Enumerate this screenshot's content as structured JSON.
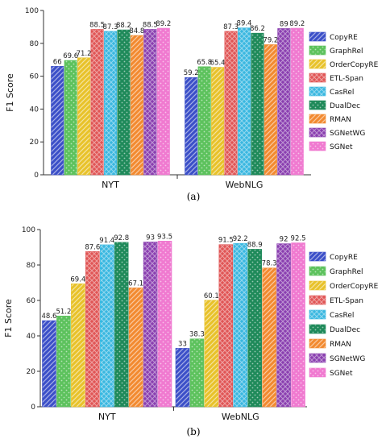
{
  "chart_data": [
    {
      "type": "bar",
      "panel_label": "(a)",
      "ylabel": "F1 Score",
      "ylim": [
        0,
        100
      ],
      "yticks": [
        0,
        20,
        40,
        60,
        80,
        100
      ],
      "categories": [
        "NYT",
        "WebNLG"
      ],
      "legend_position": "right",
      "series": [
        {
          "name": "CopyRE",
          "values": [
            66,
            59.2
          ],
          "color": "#3b4fc8",
          "pattern": "diagonal-hatch"
        },
        {
          "name": "GraphRel",
          "values": [
            69.6,
            65.8
          ],
          "color": "#5dc25d",
          "pattern": "dots"
        },
        {
          "name": "OrderCopyRE",
          "values": [
            71.2,
            65.4
          ],
          "color": "#e8c22a",
          "pattern": "diagonal-hatch"
        },
        {
          "name": "ETL-Span",
          "values": [
            88.5,
            87.3
          ],
          "color": "#e05555",
          "pattern": "cross-hatch"
        },
        {
          "name": "CasRel",
          "values": [
            87.3,
            89.4
          ],
          "color": "#39b7e0",
          "pattern": "cross-hatch"
        },
        {
          "name": "DualDec",
          "values": [
            88.2,
            86.2
          ],
          "color": "#1f8a5a",
          "pattern": "dots"
        },
        {
          "name": "RMAN",
          "values": [
            84.8,
            79.2
          ],
          "color": "#f28a30",
          "pattern": "diagonal-hatch"
        },
        {
          "name": "SGNetWG",
          "values": [
            88.5,
            89
          ],
          "color": "#8a3fb0",
          "pattern": "cross-hatch"
        },
        {
          "name": "SGNet",
          "values": [
            89.2,
            89.2
          ],
          "color": "#f07ad0",
          "pattern": "dots"
        }
      ]
    },
    {
      "type": "bar",
      "panel_label": "(b)",
      "ylabel": "F1 Score",
      "ylim": [
        0,
        100
      ],
      "yticks": [
        0,
        20,
        40,
        60,
        80,
        100
      ],
      "categories": [
        "NYT",
        "WebNLG"
      ],
      "legend_position": "right",
      "series": [
        {
          "name": "CopyRE",
          "values": [
            48.6,
            33
          ],
          "color": "#3b4fc8",
          "pattern": "diagonal-hatch"
        },
        {
          "name": "GraphRel",
          "values": [
            51.2,
            38.3
          ],
          "color": "#5dc25d",
          "pattern": "dots"
        },
        {
          "name": "OrderCopyRE",
          "values": [
            69.4,
            60.1
          ],
          "color": "#e8c22a",
          "pattern": "diagonal-hatch"
        },
        {
          "name": "ETL-Span",
          "values": [
            87.6,
            91.5
          ],
          "color": "#e05555",
          "pattern": "cross-hatch"
        },
        {
          "name": "CasRel",
          "values": [
            91.4,
            92.2
          ],
          "color": "#39b7e0",
          "pattern": "cross-hatch"
        },
        {
          "name": "DualDec",
          "values": [
            92.8,
            88.9
          ],
          "color": "#1f8a5a",
          "pattern": "dots"
        },
        {
          "name": "RMAN",
          "values": [
            67.1,
            78.3
          ],
          "color": "#f28a30",
          "pattern": "diagonal-hatch"
        },
        {
          "name": "SGNetWG",
          "values": [
            93,
            92
          ],
          "color": "#8a3fb0",
          "pattern": "cross-hatch"
        },
        {
          "name": "SGNet",
          "values": [
            93.5,
            92.5
          ],
          "color": "#f07ad0",
          "pattern": "dots"
        }
      ]
    }
  ]
}
